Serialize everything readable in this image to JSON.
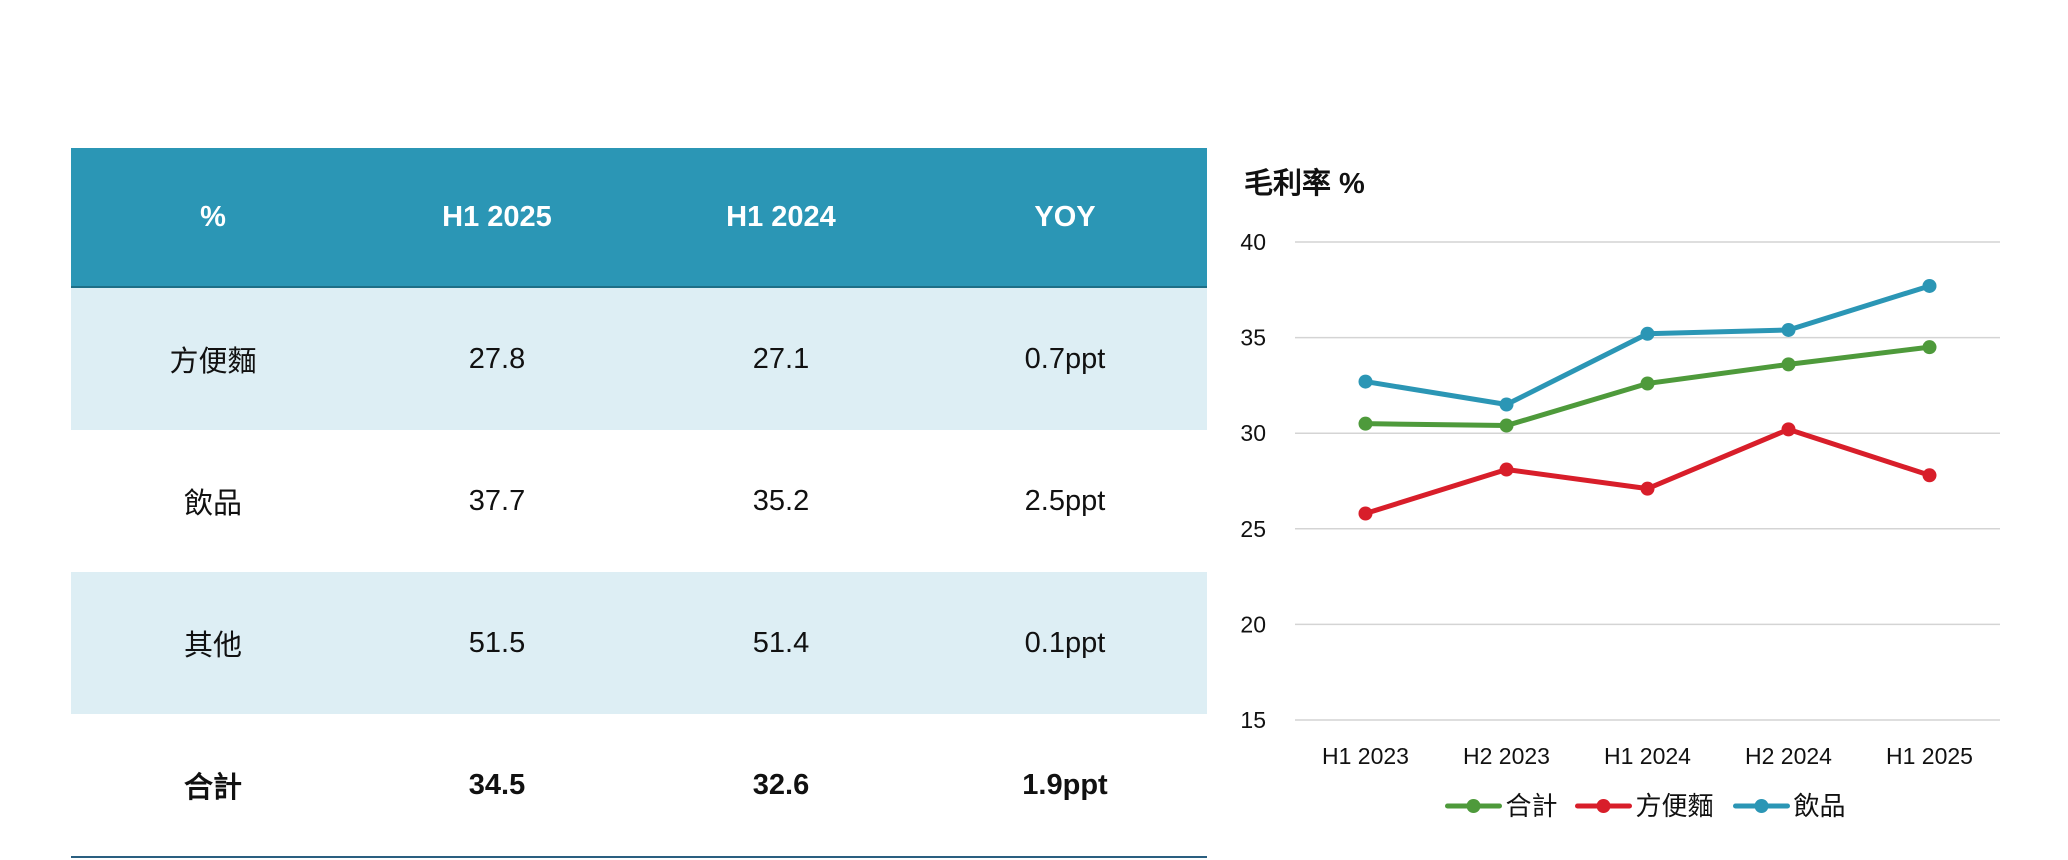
{
  "table": {
    "headers": [
      "%",
      "H1 2025",
      "H1 2024",
      "YOY"
    ],
    "rows": [
      [
        "方便麵",
        "27.8",
        "27.1",
        "0.7ppt"
      ],
      [
        "飲品",
        "37.7",
        "35.2",
        "2.5ppt"
      ],
      [
        "其他",
        "51.5",
        "51.4",
        "0.1ppt"
      ],
      [
        "合計",
        "34.5",
        "32.6",
        "1.9ppt"
      ]
    ]
  },
  "chart_data": {
    "type": "line",
    "title": "毛利率 %",
    "categories": [
      "H1 2023",
      "H2 2023",
      "H1 2024",
      "H2 2024",
      "H1 2025"
    ],
    "ylim": [
      15,
      40
    ],
    "yticks": [
      40,
      35,
      30,
      25,
      20,
      15
    ],
    "grid": true,
    "legend": "bottom",
    "series": [
      {
        "name": "合計",
        "color": "#4e9a3b",
        "values": [
          30.5,
          30.4,
          32.6,
          33.6,
          34.5
        ]
      },
      {
        "name": "方便麵",
        "color": "#d81e2a",
        "values": [
          25.8,
          28.1,
          27.1,
          30.2,
          27.8
        ]
      },
      {
        "name": "飲品",
        "color": "#2b96b5",
        "values": [
          32.7,
          31.5,
          35.2,
          35.4,
          37.7
        ]
      }
    ]
  }
}
